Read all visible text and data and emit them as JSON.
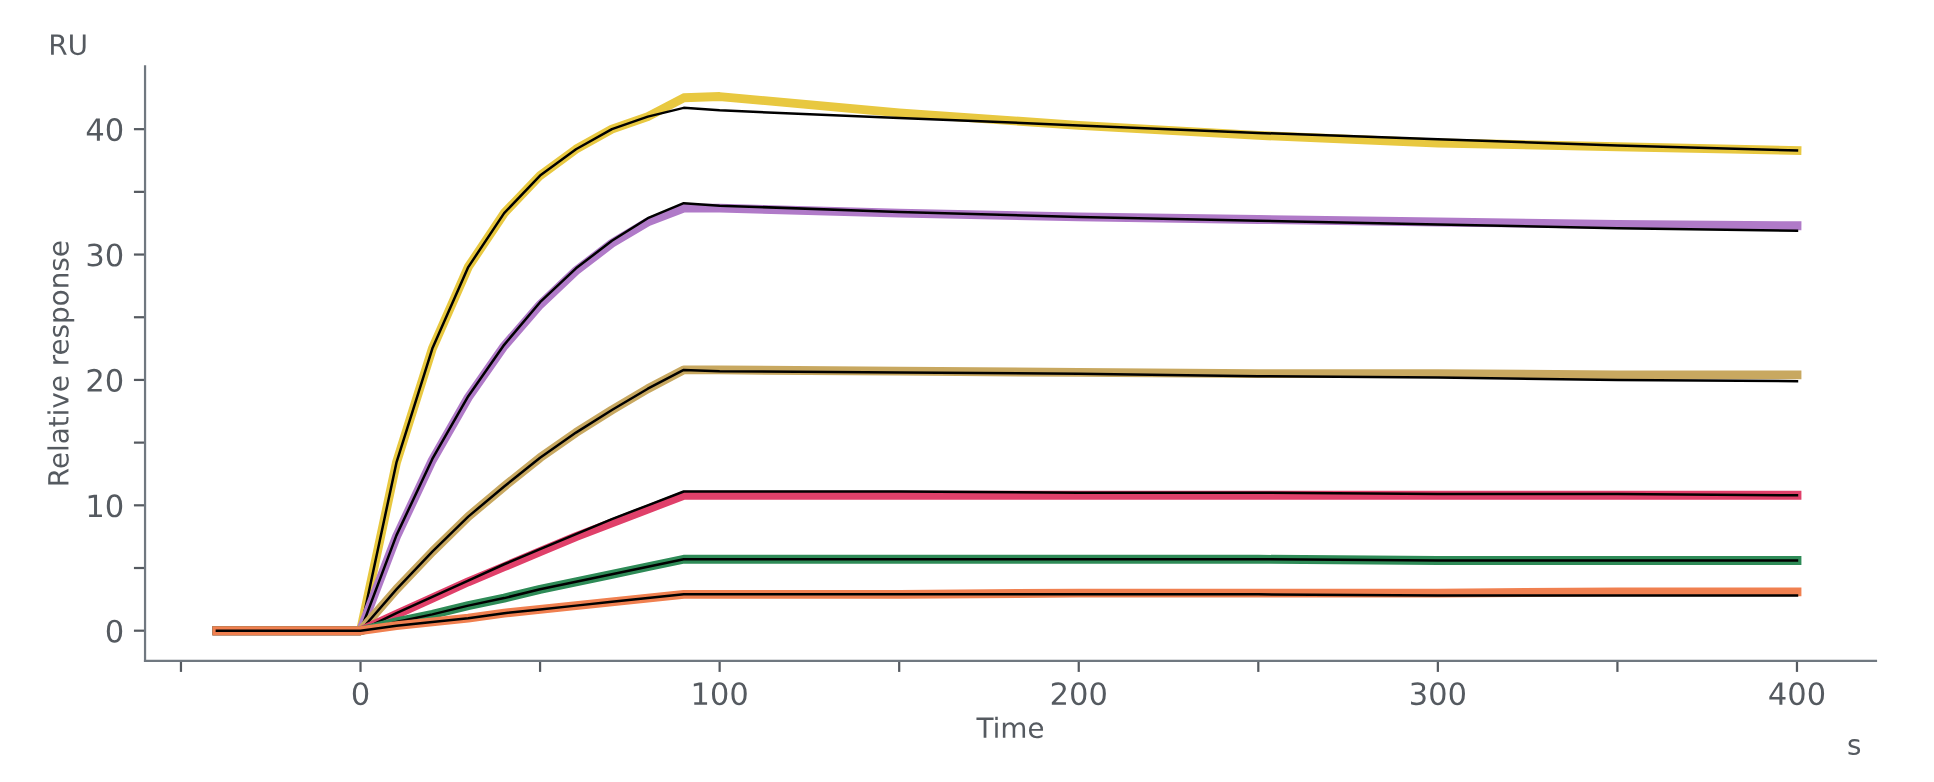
{
  "chart_data": {
    "type": "line",
    "xlabel": "Time",
    "ylabel": "Relative response",
    "annotations": [
      "RU",
      "s"
    ],
    "x": [
      -40,
      0,
      10,
      20,
      30,
      40,
      50,
      60,
      70,
      80,
      90,
      100,
      150,
      200,
      250,
      300,
      350,
      400
    ],
    "series": [
      {
        "color": "#e8c840",
        "values": [
          0,
          0,
          13.4,
          22.5,
          29.0,
          33.3,
          36.3,
          38.4,
          40.0,
          41.0,
          42.5,
          42.6,
          41.3,
          40.3,
          39.5,
          38.9,
          38.6,
          38.3
        ]
      },
      {
        "color": "#000000",
        "values": [
          0,
          0,
          13.4,
          22.5,
          29.0,
          33.3,
          36.3,
          38.4,
          40.0,
          41.0,
          41.7,
          41.5,
          40.9,
          40.3,
          39.7,
          39.2,
          38.7,
          38.3
        ]
      },
      {
        "color": "#b07ac8",
        "values": [
          0,
          0,
          7.5,
          13.6,
          18.6,
          22.7,
          26.0,
          28.7,
          30.9,
          32.6,
          33.7,
          33.7,
          33.3,
          33.0,
          32.8,
          32.6,
          32.4,
          32.3
        ]
      },
      {
        "color": "#000000",
        "values": [
          0,
          0,
          7.6,
          13.7,
          18.7,
          22.8,
          26.2,
          28.9,
          31.1,
          32.9,
          34.1,
          33.9,
          33.4,
          33.0,
          32.7,
          32.4,
          32.1,
          31.9
        ]
      },
      {
        "color": "#c8a860",
        "values": [
          0,
          0,
          3.3,
          6.3,
          9.1,
          11.5,
          13.8,
          15.8,
          17.6,
          19.3,
          20.8,
          20.8,
          20.7,
          20.6,
          20.5,
          20.5,
          20.4,
          20.4
        ]
      },
      {
        "color": "#000000",
        "values": [
          0,
          0,
          3.3,
          6.3,
          9.1,
          11.5,
          13.8,
          15.8,
          17.6,
          19.3,
          20.8,
          20.7,
          20.6,
          20.5,
          20.3,
          20.2,
          20.0,
          19.9
        ]
      },
      {
        "color": "#e0406a",
        "values": [
          0,
          0,
          1.3,
          2.6,
          3.9,
          5.1,
          6.3,
          7.5,
          8.6,
          9.7,
          10.8,
          10.8,
          10.8,
          10.8,
          10.8,
          10.8,
          10.8,
          10.8
        ]
      },
      {
        "color": "#000000",
        "values": [
          0,
          0,
          1.4,
          2.7,
          4.0,
          5.3,
          6.5,
          7.7,
          8.9,
          10.0,
          11.1,
          11.1,
          11.1,
          11.0,
          11.0,
          10.9,
          10.9,
          10.8
        ]
      },
      {
        "color": "#2e8b57",
        "values": [
          0,
          0,
          0.7,
          1.3,
          2.0,
          2.6,
          3.3,
          3.9,
          4.5,
          5.1,
          5.7,
          5.7,
          5.7,
          5.7,
          5.7,
          5.6,
          5.6,
          5.6
        ]
      },
      {
        "color": "#000000",
        "values": [
          0,
          0,
          0.7,
          1.3,
          2.0,
          2.6,
          3.3,
          3.9,
          4.5,
          5.1,
          5.7,
          5.7,
          5.7,
          5.7,
          5.7,
          5.6,
          5.6,
          5.6
        ]
      },
      {
        "color": "#f08050",
        "values": [
          0,
          0,
          0.4,
          0.7,
          1.0,
          1.4,
          1.7,
          2.0,
          2.3,
          2.6,
          2.9,
          2.9,
          2.9,
          3.0,
          3.0,
          3.0,
          3.1,
          3.1
        ]
      },
      {
        "color": "#000000",
        "values": [
          0,
          0,
          0.4,
          0.7,
          1.0,
          1.4,
          1.7,
          2.0,
          2.3,
          2.6,
          2.9,
          2.9,
          2.9,
          2.9,
          2.9,
          2.8,
          2.8,
          2.8
        ]
      }
    ],
    "xlim": [
      -60,
      422
    ],
    "ylim": [
      -2.4,
      45
    ],
    "xticks": [
      {
        "value": -50,
        "label": null
      },
      0,
      {
        "value": 50,
        "label": null
      },
      100,
      {
        "value": 150,
        "label": null
      },
      200,
      {
        "value": 250,
        "label": null
      },
      300,
      {
        "value": 350,
        "label": null
      },
      400
    ],
    "yticks": [
      0,
      {
        "value": 5,
        "label": null
      },
      10,
      {
        "value": 15,
        "label": null
      },
      20,
      {
        "value": 25,
        "label": null
      },
      30,
      {
        "value": 35,
        "label": null
      },
      40
    ],
    "grid": false,
    "marker": "none",
    "line_style": "solid"
  }
}
